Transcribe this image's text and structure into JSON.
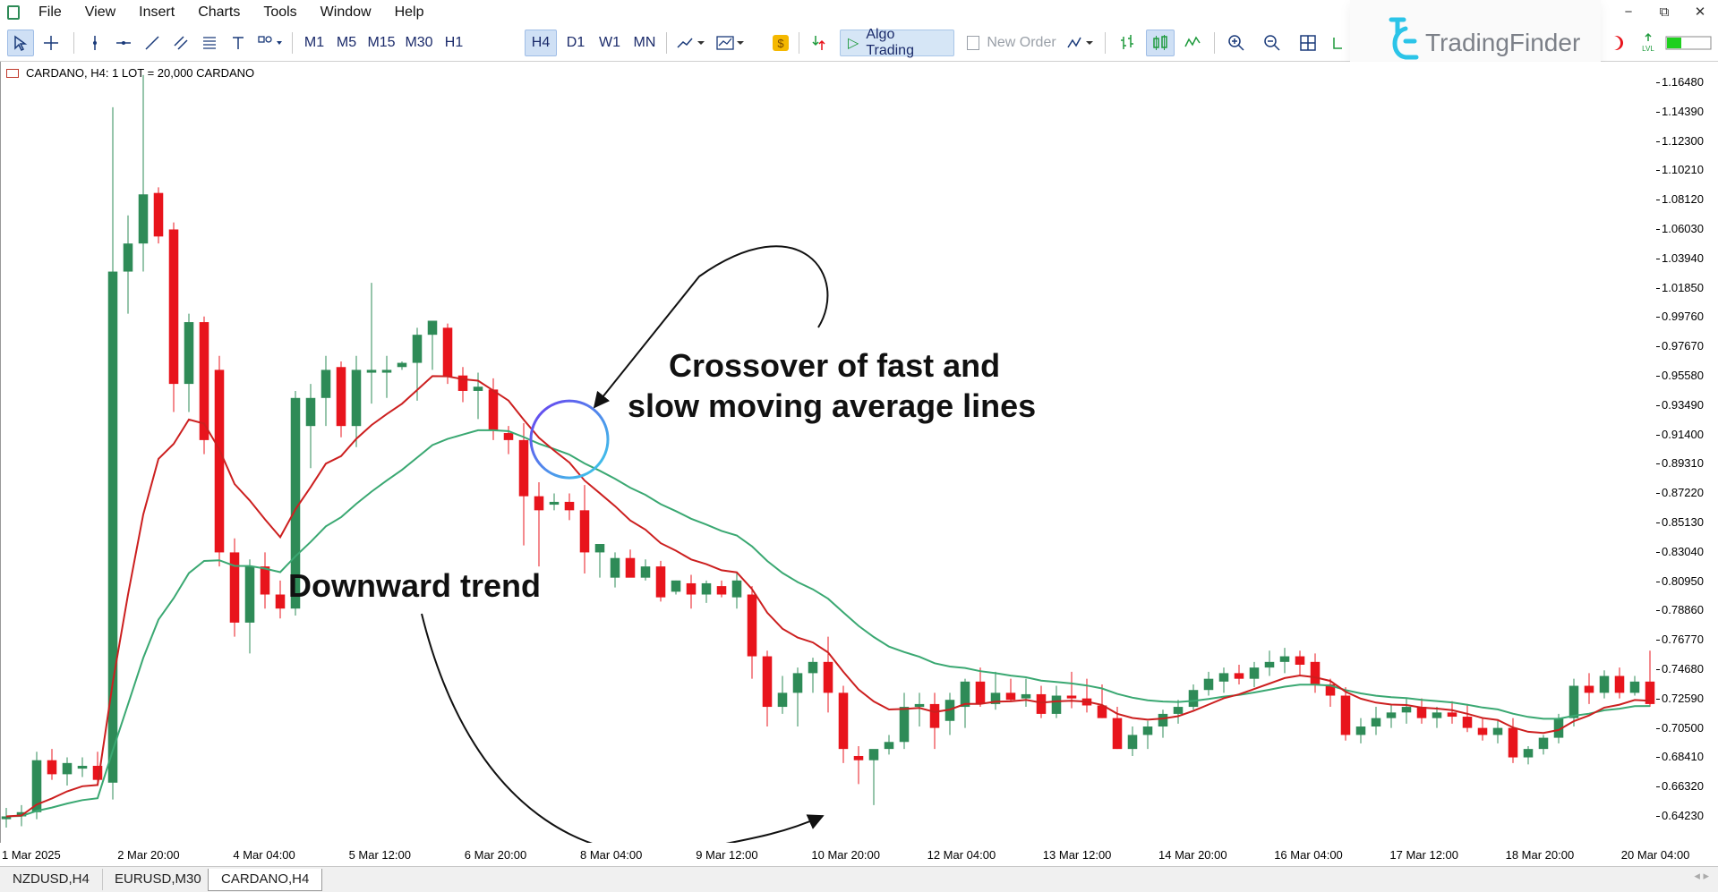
{
  "menu": [
    "File",
    "View",
    "Insert",
    "Charts",
    "Tools",
    "Window",
    "Help"
  ],
  "toolbar": {
    "timeframes": [
      "M1",
      "M5",
      "M15",
      "M30",
      "H1",
      "H4",
      "D1",
      "W1",
      "MN"
    ],
    "active_timeframe": "H4",
    "algo_trading_label": "Algo Trading",
    "new_order_label": "New Order"
  },
  "logo": {
    "text": "TradingFinder"
  },
  "chart": {
    "label": "CARDANO, H4:  1 LOT = 20,000 CARDANO",
    "price_ticks": [
      "1.16480",
      "1.14390",
      "1.12300",
      "1.10210",
      "1.08120",
      "1.06030",
      "1.03940",
      "1.01850",
      "0.99760",
      "0.97670",
      "0.95580",
      "0.93490",
      "0.91400",
      "0.89310",
      "0.87220",
      "0.85130",
      "0.83040",
      "0.80950",
      "0.78860",
      "0.76770",
      "0.74680",
      "0.72590",
      "0.70500",
      "0.68410",
      "0.66320",
      "0.64230"
    ],
    "time_ticks": [
      "1 Mar 2025",
      "2 Mar 20:00",
      "4 Mar 04:00",
      "5 Mar 12:00",
      "6 Mar 20:00",
      "8 Mar 04:00",
      "9 Mar 12:00",
      "10 Mar 20:00",
      "12 Mar 04:00",
      "13 Mar 12:00",
      "14 Mar 20:00",
      "16 Mar 04:00",
      "17 Mar 12:00",
      "18 Mar 20:00",
      "20 Mar 04:00"
    ],
    "colors": {
      "bull": "#2e8b57",
      "bear": "#e8141c",
      "fast_ma": "#cc1f1f",
      "slow_ma": "#3aa872"
    },
    "annotations": {
      "crossover_line1": "Crossover of fast and",
      "crossover_line2": "slow moving average lines",
      "downtrend": "Downward trend"
    }
  },
  "tabs": [
    "NZDUSD,H4",
    "EURUSD,M30",
    "CARDANO,H4"
  ],
  "active_tab": "CARDANO,H4",
  "chart_data": {
    "type": "candlestick",
    "symbol": "CARDANO",
    "timeframe": "H4",
    "ylim": [
      0.625,
      1.175
    ],
    "candles": [
      [
        0.64,
        0.648,
        0.634,
        0.642
      ],
      [
        0.642,
        0.65,
        0.635,
        0.645
      ],
      [
        0.645,
        0.688,
        0.64,
        0.682
      ],
      [
        0.682,
        0.69,
        0.668,
        0.672
      ],
      [
        0.672,
        0.684,
        0.664,
        0.68
      ],
      [
        0.676,
        0.684,
        0.67,
        0.678
      ],
      [
        0.678,
        0.688,
        0.664,
        0.668
      ],
      [
        0.666,
        1.147,
        0.654,
        1.03
      ],
      [
        1.03,
        1.07,
        1.0,
        1.05
      ],
      [
        1.05,
        1.17,
        1.03,
        1.085
      ],
      [
        1.086,
        1.09,
        1.05,
        1.055
      ],
      [
        1.06,
        1.065,
        0.93,
        0.95
      ],
      [
        0.95,
        1.0,
        0.93,
        0.994
      ],
      [
        0.994,
        0.998,
        0.9,
        0.91
      ],
      [
        0.96,
        0.97,
        0.82,
        0.83
      ],
      [
        0.83,
        0.84,
        0.77,
        0.78
      ],
      [
        0.78,
        0.825,
        0.758,
        0.82
      ],
      [
        0.82,
        0.83,
        0.79,
        0.8
      ],
      [
        0.8,
        0.81,
        0.783,
        0.79
      ],
      [
        0.79,
        0.945,
        0.785,
        0.94
      ],
      [
        0.92,
        0.95,
        0.89,
        0.94
      ],
      [
        0.94,
        0.97,
        0.92,
        0.96
      ],
      [
        0.962,
        0.966,
        0.912,
        0.92
      ],
      [
        0.92,
        0.97,
        0.905,
        0.96
      ],
      [
        0.958,
        1.022,
        0.936,
        0.96
      ],
      [
        0.958,
        0.97,
        0.94,
        0.96
      ],
      [
        0.962,
        0.966,
        0.96,
        0.965
      ],
      [
        0.965,
        0.99,
        0.938,
        0.985
      ],
      [
        0.985,
        0.994,
        0.96,
        0.995
      ],
      [
        0.99,
        0.993,
        0.95,
        0.955
      ],
      [
        0.956,
        0.962,
        0.937,
        0.945
      ],
      [
        0.945,
        0.958,
        0.925,
        0.948
      ],
      [
        0.946,
        0.954,
        0.91,
        0.917
      ],
      [
        0.915,
        0.92,
        0.9,
        0.91
      ],
      [
        0.91,
        0.922,
        0.835,
        0.87
      ],
      [
        0.87,
        0.88,
        0.82,
        0.86
      ],
      [
        0.864,
        0.872,
        0.86,
        0.866
      ],
      [
        0.866,
        0.872,
        0.853,
        0.86
      ],
      [
        0.86,
        0.878,
        0.815,
        0.83
      ],
      [
        0.83,
        0.836,
        0.812,
        0.836
      ],
      [
        0.812,
        0.83,
        0.805,
        0.826
      ],
      [
        0.826,
        0.832,
        0.815,
        0.812
      ],
      [
        0.812,
        0.825,
        0.81,
        0.82
      ],
      [
        0.82,
        0.824,
        0.795,
        0.798
      ],
      [
        0.802,
        0.81,
        0.8,
        0.81
      ],
      [
        0.808,
        0.814,
        0.79,
        0.8
      ],
      [
        0.8,
        0.81,
        0.794,
        0.808
      ],
      [
        0.806,
        0.81,
        0.798,
        0.8
      ],
      [
        0.798,
        0.816,
        0.79,
        0.81
      ],
      [
        0.8,
        0.806,
        0.74,
        0.756
      ],
      [
        0.756,
        0.76,
        0.706,
        0.72
      ],
      [
        0.72,
        0.742,
        0.715,
        0.73
      ],
      [
        0.73,
        0.748,
        0.706,
        0.744
      ],
      [
        0.744,
        0.755,
        0.73,
        0.752
      ],
      [
        0.752,
        0.77,
        0.716,
        0.73
      ],
      [
        0.73,
        0.735,
        0.68,
        0.69
      ],
      [
        0.685,
        0.692,
        0.665,
        0.682
      ],
      [
        0.682,
        0.688,
        0.65,
        0.69
      ],
      [
        0.69,
        0.7,
        0.686,
        0.695
      ],
      [
        0.695,
        0.73,
        0.69,
        0.72
      ],
      [
        0.72,
        0.73,
        0.706,
        0.722
      ],
      [
        0.722,
        0.73,
        0.69,
        0.705
      ],
      [
        0.71,
        0.73,
        0.7,
        0.725
      ],
      [
        0.72,
        0.74,
        0.705,
        0.738
      ],
      [
        0.738,
        0.748,
        0.72,
        0.722
      ],
      [
        0.722,
        0.745,
        0.718,
        0.73
      ],
      [
        0.73,
        0.74,
        0.724,
        0.725
      ],
      [
        0.726,
        0.74,
        0.72,
        0.729
      ],
      [
        0.729,
        0.735,
        0.712,
        0.715
      ],
      [
        0.715,
        0.735,
        0.712,
        0.728
      ],
      [
        0.728,
        0.745,
        0.719,
        0.726
      ],
      [
        0.726,
        0.74,
        0.716,
        0.721
      ],
      [
        0.721,
        0.736,
        0.712,
        0.712
      ],
      [
        0.712,
        0.72,
        0.69,
        0.69
      ],
      [
        0.69,
        0.706,
        0.685,
        0.7
      ],
      [
        0.7,
        0.71,
        0.69,
        0.706
      ],
      [
        0.706,
        0.718,
        0.698,
        0.715
      ],
      [
        0.715,
        0.725,
        0.708,
        0.72
      ],
      [
        0.72,
        0.736,
        0.718,
        0.732
      ],
      [
        0.732,
        0.745,
        0.728,
        0.74
      ],
      [
        0.738,
        0.748,
        0.73,
        0.744
      ],
      [
        0.744,
        0.75,
        0.736,
        0.74
      ],
      [
        0.74,
        0.752,
        0.734,
        0.748
      ],
      [
        0.748,
        0.76,
        0.742,
        0.752
      ],
      [
        0.752,
        0.762,
        0.744,
        0.756
      ],
      [
        0.756,
        0.76,
        0.742,
        0.75
      ],
      [
        0.752,
        0.758,
        0.73,
        0.736
      ],
      [
        0.736,
        0.74,
        0.72,
        0.728
      ],
      [
        0.728,
        0.734,
        0.696,
        0.7
      ],
      [
        0.7,
        0.712,
        0.694,
        0.706
      ],
      [
        0.706,
        0.72,
        0.7,
        0.712
      ],
      [
        0.712,
        0.722,
        0.705,
        0.716
      ],
      [
        0.716,
        0.726,
        0.708,
        0.72
      ],
      [
        0.72,
        0.726,
        0.708,
        0.712
      ],
      [
        0.712,
        0.72,
        0.705,
        0.716
      ],
      [
        0.716,
        0.724,
        0.708,
        0.713
      ],
      [
        0.713,
        0.722,
        0.702,
        0.705
      ],
      [
        0.705,
        0.712,
        0.696,
        0.7
      ],
      [
        0.7,
        0.71,
        0.694,
        0.705
      ],
      [
        0.705,
        0.712,
        0.68,
        0.684
      ],
      [
        0.684,
        0.692,
        0.679,
        0.69
      ],
      [
        0.69,
        0.7,
        0.686,
        0.698
      ],
      [
        0.698,
        0.715,
        0.694,
        0.712
      ],
      [
        0.712,
        0.74,
        0.706,
        0.735
      ],
      [
        0.735,
        0.744,
        0.722,
        0.73
      ],
      [
        0.73,
        0.746,
        0.726,
        0.742
      ],
      [
        0.742,
        0.748,
        0.726,
        0.73
      ],
      [
        0.73,
        0.742,
        0.728,
        0.738
      ],
      [
        0.738,
        0.76,
        0.72,
        0.722
      ]
    ],
    "fast_ma_label": "",
    "slow_ma_label": ""
  }
}
